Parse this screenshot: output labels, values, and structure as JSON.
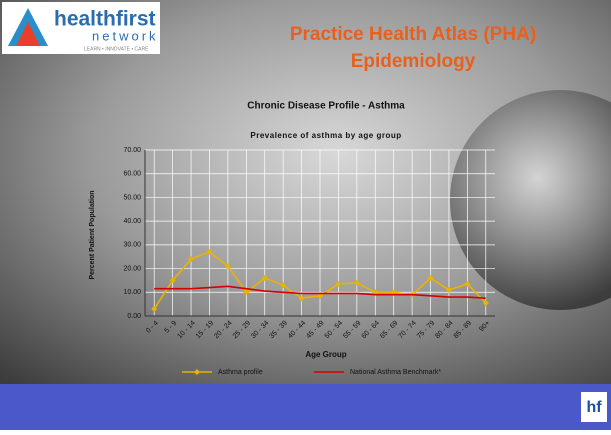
{
  "slide": {
    "logo": {
      "name": "healthfirst",
      "sub": "network",
      "tagline": "LEARN • INNOVATE • CARE"
    },
    "title": [
      "Practice Health Atlas (PHA)",
      "Epidemiology"
    ],
    "footer_logo": "hf"
  },
  "chart_data": {
    "type": "line",
    "title": "Chronic Disease Profile - Asthma",
    "subtitle": "Prevalence of asthma by age group",
    "x_label": "Age Group",
    "y_label": "Percent Patient Population",
    "categories": [
      "0 - 4",
      "5 - 9",
      "10 - 14",
      "15 - 19",
      "20 - 24",
      "25 - 29",
      "30 - 34",
      "35 - 39",
      "40 - 44",
      "45 - 49",
      "50 - 54",
      "55 - 59",
      "60 - 64",
      "65 - 69",
      "70 - 74",
      "75 - 79",
      "80 - 84",
      "85 - 89",
      "90+"
    ],
    "series": [
      {
        "name": "Asthma profile",
        "color": "#e8b400",
        "marker": true,
        "values": [
          3,
          15,
          24,
          27,
          21,
          10,
          16,
          13,
          7.5,
          8.5,
          13.5,
          14,
          10,
          10,
          9,
          16,
          11,
          13.5,
          5.5
        ]
      },
      {
        "name": "National Asthma Benchmark*",
        "color": "#d40000",
        "marker": false,
        "values": [
          11.5,
          11.5,
          11.5,
          12,
          12.5,
          11.5,
          10.5,
          10,
          9.5,
          9.5,
          9.5,
          9.5,
          9,
          9,
          9,
          8.5,
          8,
          8,
          7.5
        ]
      }
    ],
    "ylim": [
      0,
      70
    ],
    "yticks": [
      {
        "value": 0,
        "label": "0.00"
      },
      {
        "value": 10,
        "label": "10.00"
      },
      {
        "value": 20,
        "label": "20.00"
      },
      {
        "value": 30,
        "label": "30.00"
      },
      {
        "value": 40,
        "label": "40.00"
      },
      {
        "value": 50,
        "label": "50.00"
      },
      {
        "value": 60,
        "label": "60.00"
      },
      {
        "value": 70,
        "label": "70.00"
      }
    ],
    "grid": true
  }
}
